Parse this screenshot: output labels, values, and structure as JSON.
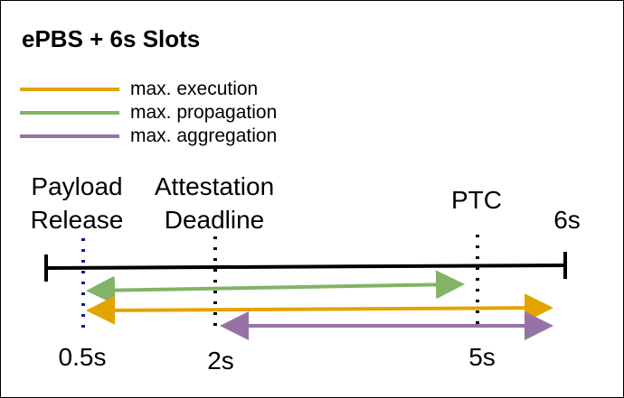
{
  "title": "ePBS + 6s Slots",
  "legend": [
    {
      "label": "max. execution",
      "color": "#E3A400"
    },
    {
      "label": "max. propagation",
      "color": "#82B366"
    },
    {
      "label": "max. aggregation",
      "color": "#9673A6"
    }
  ],
  "markers": {
    "payload_release": {
      "line1": "Payload",
      "line2": "Release",
      "time": "0.5s",
      "line_color": "#0A1A8C"
    },
    "attestation_deadline": {
      "line1": "Attestation",
      "line2": "Deadline",
      "time": "2s"
    },
    "ptc": {
      "label": "PTC",
      "time": "5s"
    },
    "slot_end": {
      "label": "6s"
    }
  },
  "colors": {
    "timeline": "#000000",
    "execution": "#E3A400",
    "propagation": "#82B366",
    "aggregation": "#9673A6"
  }
}
